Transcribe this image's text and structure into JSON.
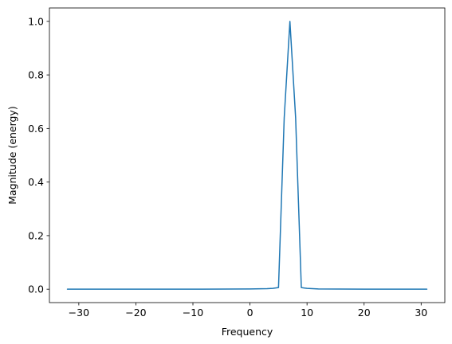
{
  "chart_data": {
    "type": "line",
    "title": "",
    "xlabel": "Frequency",
    "ylabel": "Magnitude (energy)",
    "xlim": [
      -35.15,
      34.15
    ],
    "ylim": [
      -0.05,
      1.05
    ],
    "xticks": [
      -30,
      -20,
      -10,
      0,
      10,
      20,
      30
    ],
    "xtick_labels": [
      "−30",
      "−20",
      "−10",
      "0",
      "10",
      "20",
      "30"
    ],
    "yticks": [
      0.0,
      0.2,
      0.4,
      0.6,
      0.8,
      1.0
    ],
    "ytick_labels": [
      "0.0",
      "0.2",
      "0.4",
      "0.6",
      "0.8",
      "1.0"
    ],
    "grid": false,
    "series": [
      {
        "color": "#1f77b4",
        "x": [
          -32,
          -30,
          -20,
          -10,
          0,
          3,
          4,
          5,
          6,
          7,
          8,
          9,
          10,
          11,
          12,
          20,
          30,
          31
        ],
        "y": [
          0.0,
          0.0,
          0.0,
          0.0,
          0.001,
          0.002,
          0.003,
          0.006,
          0.64,
          1.0,
          0.64,
          0.006,
          0.003,
          0.002,
          0.001,
          0.0,
          0.0,
          0.0
        ]
      }
    ]
  }
}
